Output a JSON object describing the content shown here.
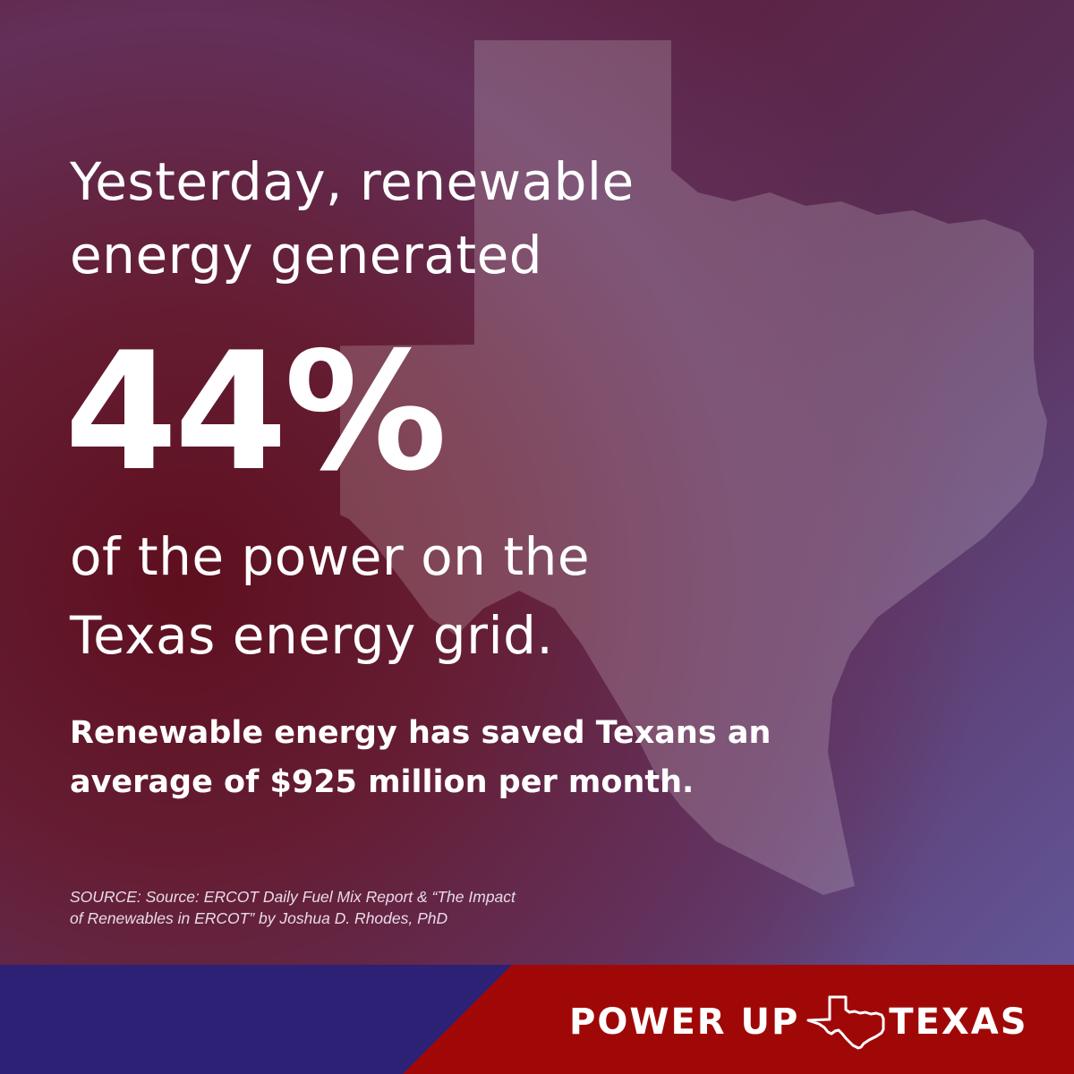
{
  "headline": {
    "line1": "Yesterday, renewable",
    "line2": "energy generated"
  },
  "stat": {
    "value": "44%"
  },
  "subline": {
    "line1": "of the power on the",
    "line2": "Texas energy grid."
  },
  "savings": {
    "line1": "Renewable energy has saved Texans an",
    "line2": "average of $925 million per month."
  },
  "source": {
    "line1": "SOURCE: Source: ERCOT Daily Fuel Mix Report & “The Impact",
    "line2": "of Renewables in ERCOT” by Joshua D. Rhodes, PhD"
  },
  "brand": {
    "word1": "POWER UP",
    "word2": "TEXAS",
    "icon": "texas-outline-icon"
  },
  "colors": {
    "brand_red": "#a00808",
    "brand_blue": "#2d2175",
    "text": "#ffffff"
  }
}
